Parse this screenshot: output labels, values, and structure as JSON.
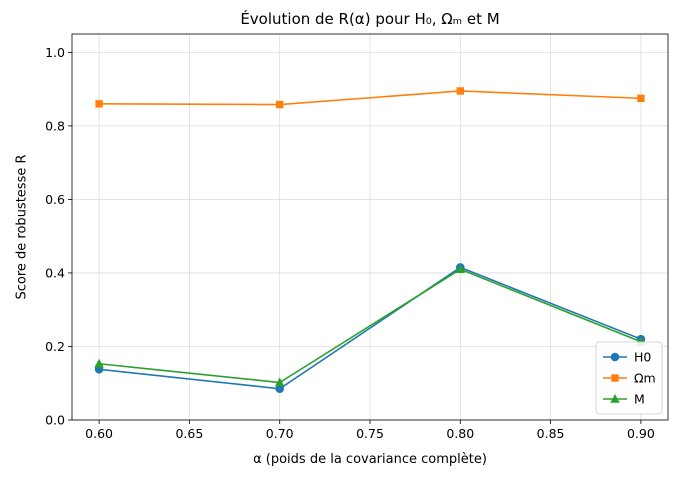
{
  "chart_data": {
    "type": "line",
    "title": "Évolution de R(α) pour H₀, Ωₘ et M",
    "xlabel": "α (poids de la covariance complète)",
    "ylabel": "Score de robustesse R",
    "x": [
      0.6,
      0.7,
      0.8,
      0.9
    ],
    "xlim": [
      0.585,
      0.915
    ],
    "ylim": [
      0.0,
      1.05
    ],
    "xticks": [
      "0.60",
      "0.65",
      "0.70",
      "0.75",
      "0.80",
      "0.85",
      "0.90"
    ],
    "xtick_values": [
      0.6,
      0.65,
      0.7,
      0.75,
      0.8,
      0.85,
      0.9
    ],
    "yticks": [
      "0.0",
      "0.2",
      "0.4",
      "0.6",
      "0.8",
      "1.0"
    ],
    "ytick_values": [
      0.0,
      0.2,
      0.4,
      0.6,
      0.8,
      1.0
    ],
    "grid": true,
    "legend_position": "lower-right",
    "series": [
      {
        "name": "H0",
        "values": [
          0.138,
          0.085,
          0.415,
          0.22
        ],
        "color": "#1f77b4",
        "marker": "circle"
      },
      {
        "name": "Ωm",
        "values": [
          0.86,
          0.858,
          0.895,
          0.875
        ],
        "color": "#ff7f0e",
        "marker": "square"
      },
      {
        "name": "M",
        "values": [
          0.153,
          0.102,
          0.41,
          0.213
        ],
        "color": "#2ca02c",
        "marker": "triangle"
      }
    ]
  }
}
